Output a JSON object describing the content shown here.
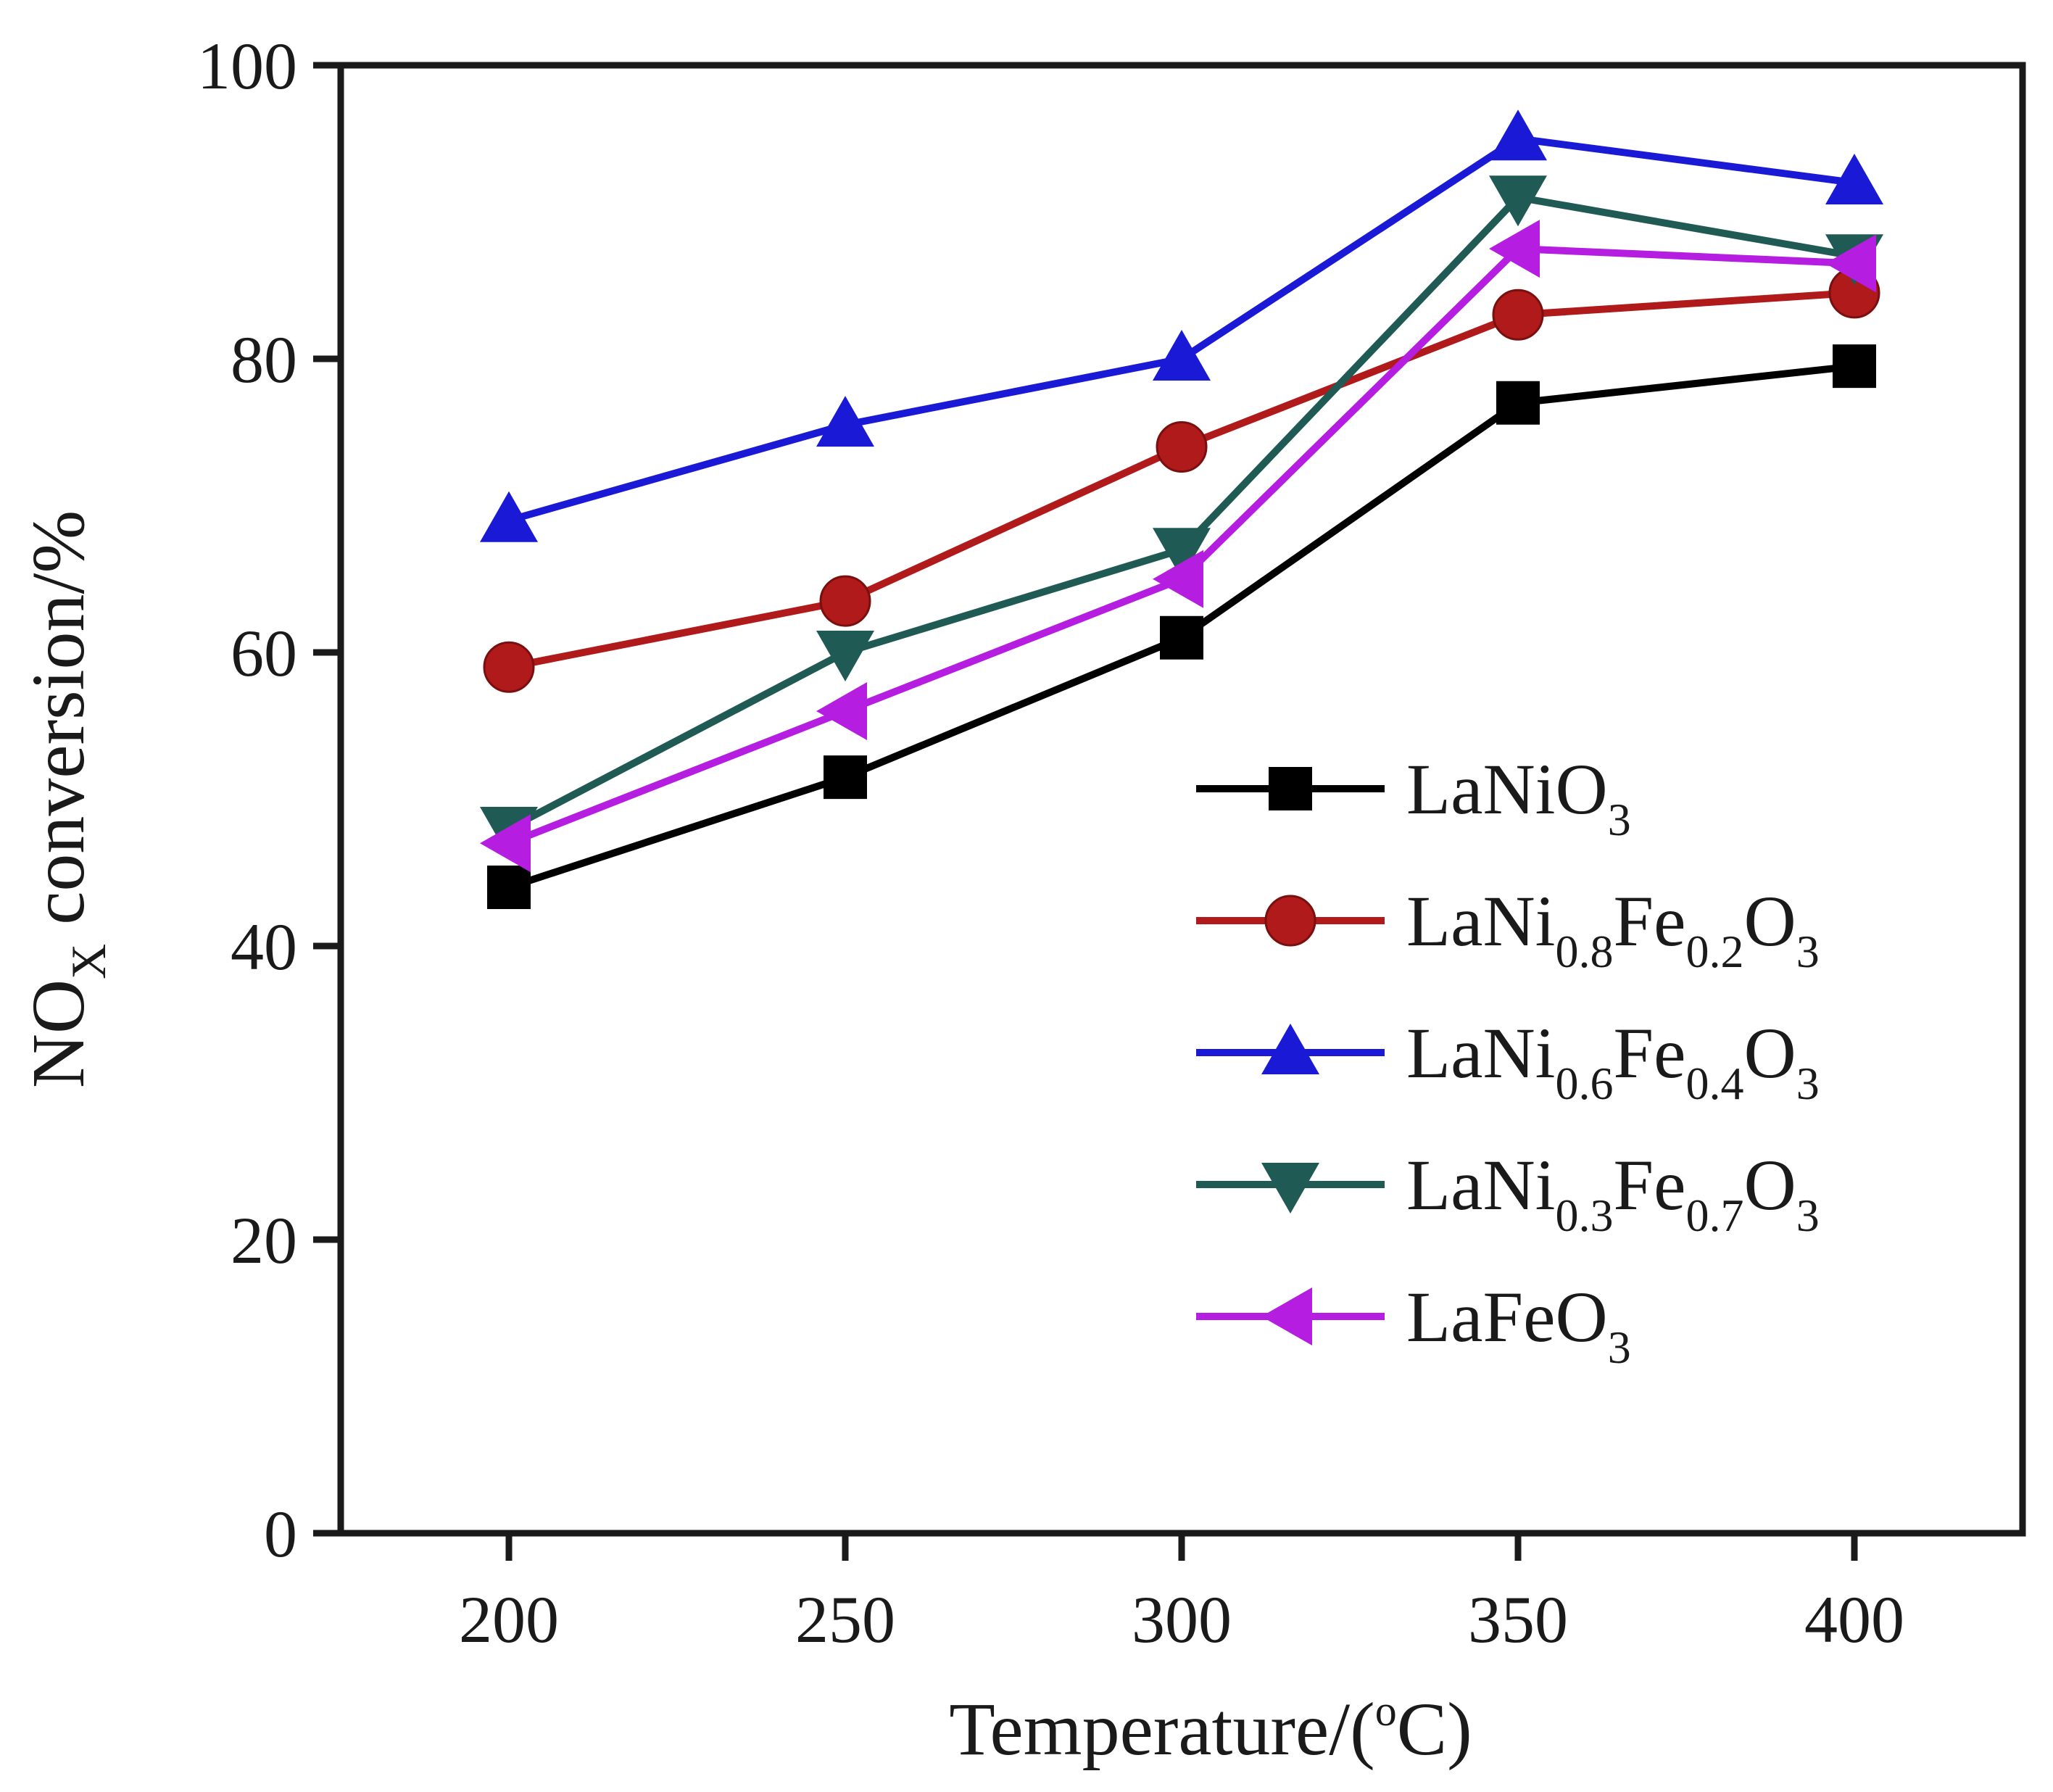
{
  "chart_data": {
    "type": "line",
    "title": "",
    "x": [
      200,
      250,
      300,
      350,
      400
    ],
    "xlim": [
      175,
      425
    ],
    "ylim": [
      0,
      100
    ],
    "xticks": [
      "200",
      "250",
      "300",
      "350",
      "400"
    ],
    "yticks": [
      "0",
      "20",
      "40",
      "60",
      "80",
      "100"
    ],
    "xlabel": {
      "text": "Temperature/(",
      "sup": "o",
      "tail": "C)"
    },
    "ylabel": {
      "text": "NO",
      "sub": "X",
      "tail": " conversion/%"
    },
    "legend_position": "center-right",
    "grid": false,
    "series": [
      {
        "name": "LaNiO3",
        "label_parts": [
          [
            "LaNiO",
            ""
          ],
          [
            "3",
            "sub"
          ]
        ],
        "color": "#000000",
        "marker": "square",
        "values": [
          44,
          51.5,
          61,
          77,
          79.5
        ]
      },
      {
        "name": "LaNi0.8Fe0.2O3",
        "label_parts": [
          [
            "LaNi",
            ""
          ],
          [
            "0.8",
            "sub"
          ],
          [
            "Fe",
            ""
          ],
          [
            "0.2",
            "sub"
          ],
          [
            "O",
            ""
          ],
          [
            "3",
            "sub"
          ]
        ],
        "color": "#b01a1a",
        "marker": "circle",
        "values": [
          59,
          63.5,
          74,
          83,
          84.5
        ]
      },
      {
        "name": "LaNi0.6Fe0.4O3",
        "label_parts": [
          [
            "LaNi",
            ""
          ],
          [
            "0.6",
            "sub"
          ],
          [
            "Fe",
            ""
          ],
          [
            "0.4",
            "sub"
          ],
          [
            "O",
            ""
          ],
          [
            "3",
            "sub"
          ]
        ],
        "color": "#1a1ad6",
        "marker": "triangle-up",
        "values": [
          69,
          75.5,
          80,
          95,
          92
        ]
      },
      {
        "name": "LaNi0.3Fe0.7O3",
        "label_parts": [
          [
            "LaNi",
            ""
          ],
          [
            "0.3",
            "sub"
          ],
          [
            "Fe",
            ""
          ],
          [
            "0.7",
            "sub"
          ],
          [
            "O",
            ""
          ],
          [
            "3",
            "sub"
          ]
        ],
        "color": "#205a55",
        "marker": "triangle-down",
        "values": [
          48,
          60,
          67,
          91,
          87
        ]
      },
      {
        "name": "LaFeO3",
        "label_parts": [
          [
            "LaFeO",
            ""
          ],
          [
            "3",
            "sub"
          ]
        ],
        "color": "#b51ee0",
        "marker": "triangle-left",
        "values": [
          47,
          56,
          65,
          87.5,
          86.5
        ]
      }
    ]
  }
}
